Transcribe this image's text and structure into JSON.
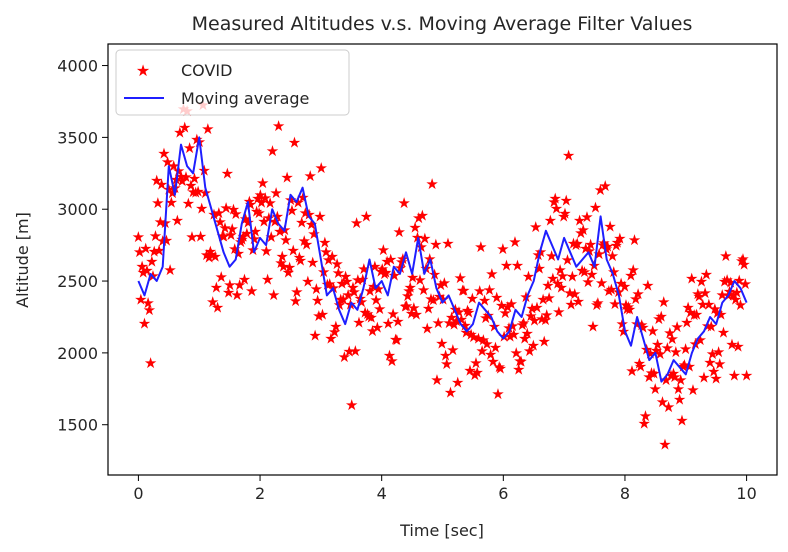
{
  "chart_data": {
    "type": "scatter",
    "title": "Measured Altitudes v.s. Moving Average Filter Values",
    "xlabel": "Time [sec]",
    "ylabel": "Altitude [m]",
    "xlim": [
      -0.5,
      10.5
    ],
    "ylim": [
      1150,
      4150
    ],
    "xticks": [
      0,
      2,
      4,
      6,
      8,
      10
    ],
    "xtick_labels": [
      "0",
      "2",
      "4",
      "6",
      "8",
      "10"
    ],
    "yticks": [
      1500,
      2000,
      2500,
      3000,
      3500,
      4000
    ],
    "ytick_labels": [
      "1500",
      "2000",
      "2500",
      "3000",
      "3500",
      "4000"
    ],
    "grid": false,
    "legend_position": "upper-left",
    "series": [
      {
        "name": "COVID",
        "style": "markers",
        "marker": "star",
        "color": "#ff0000",
        "x_start": 0,
        "x_end": 10,
        "count": 500,
        "center_curve": {
          "x": [
            0,
            0.2,
            0.3,
            0.5,
            0.7,
            0.9,
            1.0,
            1.2,
            1.4,
            1.6,
            1.8,
            2.0,
            2.2,
            2.4,
            2.6,
            2.8,
            3.0,
            3.2,
            3.4,
            3.6,
            3.8,
            4.0,
            4.2,
            4.4,
            4.6,
            4.8,
            5.0,
            5.2,
            5.4,
            5.6,
            5.8,
            6.0,
            6.2,
            6.4,
            6.6,
            6.8,
            7.0,
            7.2,
            7.4,
            7.6,
            7.8,
            8.0,
            8.2,
            8.4,
            8.6,
            8.8,
            9.0,
            9.2,
            9.4,
            9.6,
            9.8,
            10.0
          ],
          "y": [
            2450,
            2450,
            2800,
            3100,
            3250,
            3200,
            3150,
            2900,
            2750,
            2800,
            2750,
            2800,
            2850,
            2950,
            3000,
            2850,
            2550,
            2400,
            2300,
            2350,
            2450,
            2500,
            2450,
            2500,
            2550,
            2450,
            2350,
            2250,
            2200,
            2150,
            2250,
            2200,
            2150,
            2250,
            2450,
            2650,
            2700,
            2650,
            2600,
            2700,
            2600,
            2250,
            2100,
            1900,
            1850,
            1800,
            1950,
            2100,
            2200,
            2300,
            2350,
            2350
          ]
        },
        "spread": 380
      },
      {
        "name": "Moving average",
        "style": "line",
        "color": "#1f1fff",
        "x": [
          0,
          0.1,
          0.2,
          0.3,
          0.4,
          0.5,
          0.6,
          0.7,
          0.8,
          0.9,
          1.0,
          1.1,
          1.2,
          1.3,
          1.4,
          1.5,
          1.6,
          1.7,
          1.8,
          1.9,
          2.0,
          2.1,
          2.2,
          2.3,
          2.4,
          2.5,
          2.6,
          2.7,
          2.8,
          2.9,
          3.0,
          3.1,
          3.2,
          3.3,
          3.4,
          3.5,
          3.6,
          3.7,
          3.8,
          3.9,
          4.0,
          4.1,
          4.2,
          4.3,
          4.4,
          4.5,
          4.6,
          4.7,
          4.8,
          4.9,
          5.0,
          5.1,
          5.2,
          5.3,
          5.4,
          5.5,
          5.6,
          5.7,
          5.8,
          5.9,
          6.0,
          6.1,
          6.2,
          6.3,
          6.4,
          6.5,
          6.6,
          6.7,
          6.8,
          6.9,
          7.0,
          7.1,
          7.2,
          7.3,
          7.4,
          7.5,
          7.6,
          7.7,
          7.8,
          7.9,
          8.0,
          8.1,
          8.2,
          8.3,
          8.4,
          8.5,
          8.6,
          8.7,
          8.8,
          8.9,
          9.0,
          9.1,
          9.2,
          9.3,
          9.4,
          9.5,
          9.6,
          9.7,
          9.8,
          9.9,
          10.0
        ],
        "y": [
          2500,
          2400,
          2550,
          2500,
          2600,
          3300,
          3100,
          3450,
          3300,
          3250,
          3500,
          3150,
          3000,
          2850,
          2700,
          2600,
          2650,
          2900,
          3050,
          2700,
          2800,
          2750,
          3000,
          2900,
          2850,
          3100,
          3050,
          3150,
          2950,
          2900,
          2650,
          2400,
          2450,
          2300,
          2200,
          2350,
          2300,
          2450,
          2650,
          2450,
          2500,
          2400,
          2600,
          2550,
          2700,
          2550,
          2800,
          2550,
          2650,
          2450,
          2350,
          2400,
          2300,
          2200,
          2150,
          2200,
          2350,
          2300,
          2250,
          2150,
          2100,
          2150,
          2300,
          2250,
          2400,
          2500,
          2700,
          2850,
          2750,
          2650,
          2800,
          2700,
          2600,
          2650,
          2700,
          2600,
          2950,
          2650,
          2550,
          2400,
          2150,
          2050,
          2250,
          2100,
          1950,
          2000,
          1800,
          1850,
          1950,
          1900,
          1850,
          2000,
          2100,
          2150,
          2250,
          2200,
          2350,
          2400,
          2500,
          2450,
          2350
        ]
      }
    ]
  }
}
